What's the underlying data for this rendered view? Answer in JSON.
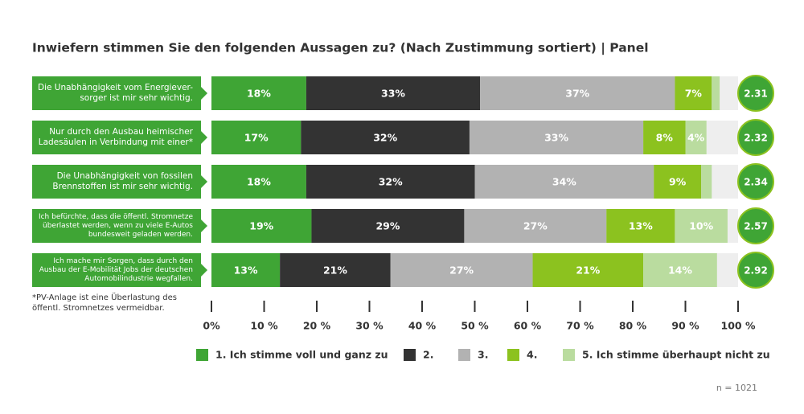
{
  "chart_data": {
    "type": "stacked-bar",
    "title": "Inwiefern stimmen Sie den folgenden Aussagen zu? (Nach Zustimmung sortiert) | Panel",
    "categories": [
      "Die Unabhängigkeit vom Energiever-\nsorger ist mir sehr wichtig.",
      "Nur durch den Ausbau heimischer\nLadesäulen in Verbindung mit einer*",
      "Die Unabhängigkeit von fossilen\nBrennstoffen ist mir sehr wichtig.",
      "Ich befürchte, dass die öffentl. Stromnetze\nüberlastet werden, wenn zu viele E-Autos\nbundesweit geladen werden.",
      "Ich mache mir Sorgen, dass durch den\nAusbau der E-Mobilität Jobs der deutschen\nAutomobilindustrie wegfallen."
    ],
    "series": [
      {
        "name": "1. Ich stimme voll und ganz zu",
        "color": "#3fa535",
        "values": [
          18,
          17,
          18,
          19,
          13
        ],
        "value_labels": [
          "18%",
          "17%",
          "18%",
          "19%",
          "13%"
        ]
      },
      {
        "name": "2.",
        "color": "#333333",
        "values": [
          33,
          32,
          32,
          29,
          21
        ],
        "value_labels": [
          "33%",
          "32%",
          "32%",
          "29%",
          "21%"
        ]
      },
      {
        "name": "3.",
        "color": "#b2b2b2",
        "values": [
          37,
          33,
          34,
          27,
          27
        ],
        "value_labels": [
          "37%",
          "33%",
          "34%",
          "27%",
          "27%"
        ]
      },
      {
        "name": "4.",
        "color": "#8cc21f",
        "values": [
          7,
          8,
          9,
          13,
          21
        ],
        "value_labels": [
          "7%",
          "8%",
          "9%",
          "13%",
          "21%"
        ]
      },
      {
        "name": "5. Ich stimme überhaupt nicht zu",
        "color": "#badc9f",
        "values": [
          1.5,
          4,
          2,
          10,
          14
        ],
        "value_labels": [
          null,
          "4%",
          null,
          "10%",
          "14%"
        ]
      }
    ],
    "means": [
      2.31,
      2.32,
      2.34,
      2.57,
      2.92
    ],
    "xlim": [
      0,
      100
    ],
    "xticks": [
      {
        "value": 0,
        "label": "0%"
      },
      {
        "value": 10,
        "label": "10 %"
      },
      {
        "value": 20,
        "label": "20 %"
      },
      {
        "value": 30,
        "label": "30 %"
      },
      {
        "value": 40,
        "label": "40 %"
      },
      {
        "value": 50,
        "label": "50 %"
      },
      {
        "value": 60,
        "label": "60 %"
      },
      {
        "value": 70,
        "label": "70 %"
      },
      {
        "value": 80,
        "label": "80 %"
      },
      {
        "value": 90,
        "label": "90 %"
      },
      {
        "value": 100,
        "label": "100 %"
      }
    ],
    "footnote": "*PV-Anlage ist eine Überlastung des\nöffentl. Stromnetzes vermeidbar.",
    "note": "n = 1021"
  }
}
